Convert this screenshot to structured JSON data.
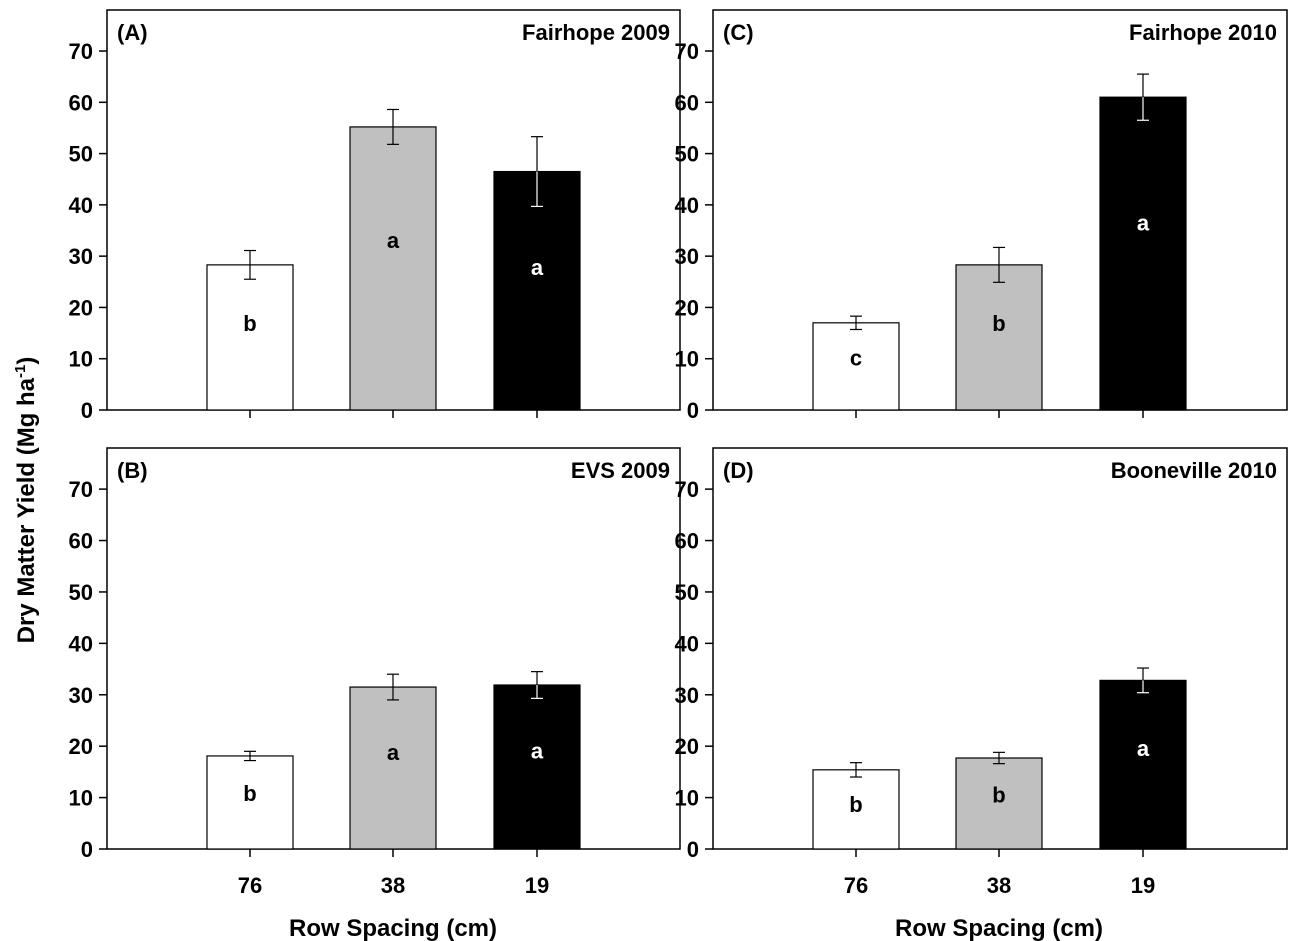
{
  "figure": {
    "ylabel": "Dry Matter Yield (Mg ha",
    "ylabel_sup": "-1",
    "ylabel_tail": ")",
    "xlabel": "Row Spacing (cm)",
    "yticks": [
      0,
      10,
      20,
      30,
      40,
      50,
      60,
      70
    ],
    "xticks": [
      "76",
      "38",
      "19"
    ]
  },
  "chart_data": [
    {
      "type": "bar",
      "panel": "(A)",
      "title": "Fairhope 2009",
      "categories": [
        "76",
        "38",
        "19"
      ],
      "values": [
        28.3,
        55.2,
        46.5
      ],
      "errors": [
        2.8,
        3.4,
        6.8
      ],
      "letters": [
        "b",
        "a",
        "a"
      ],
      "colors": [
        "#ffffff",
        "#c0c0c0",
        "#000000"
      ],
      "ylim": [
        0,
        78
      ]
    },
    {
      "type": "bar",
      "panel": "(C)",
      "title": "Fairhope 2010",
      "categories": [
        "76",
        "38",
        "19"
      ],
      "values": [
        17.0,
        28.3,
        61.0
      ],
      "errors": [
        1.3,
        3.4,
        4.5
      ],
      "letters": [
        "c",
        "b",
        "a"
      ],
      "colors": [
        "#ffffff",
        "#c0c0c0",
        "#000000"
      ],
      "ylim": [
        0,
        78
      ]
    },
    {
      "type": "bar",
      "panel": "(B)",
      "title": "EVS 2009",
      "categories": [
        "76",
        "38",
        "19"
      ],
      "values": [
        18.1,
        31.5,
        31.9
      ],
      "errors": [
        0.9,
        2.5,
        2.6
      ],
      "letters": [
        "b",
        "a",
        "a"
      ],
      "colors": [
        "#ffffff",
        "#c0c0c0",
        "#000000"
      ],
      "ylim": [
        0,
        78
      ]
    },
    {
      "type": "bar",
      "panel": "(D)",
      "title": "Booneville 2010",
      "categories": [
        "76",
        "38",
        "19"
      ],
      "values": [
        15.4,
        17.7,
        32.8
      ],
      "errors": [
        1.4,
        1.1,
        2.4
      ],
      "letters": [
        "b",
        "b",
        "a"
      ],
      "colors": [
        "#ffffff",
        "#c0c0c0",
        "#000000"
      ],
      "ylim": [
        0,
        78
      ]
    }
  ]
}
